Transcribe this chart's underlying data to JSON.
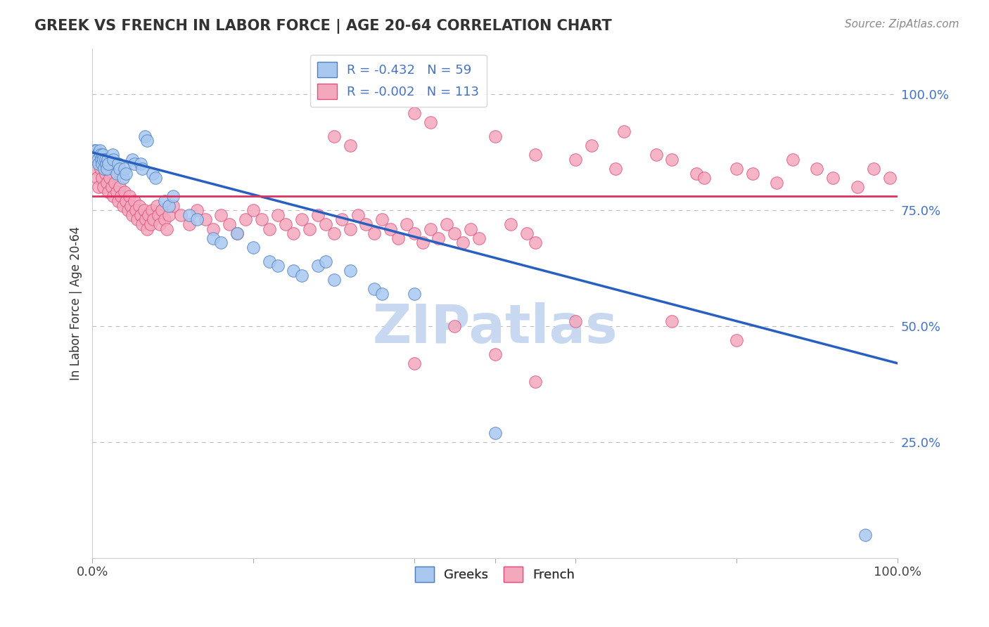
{
  "title": "GREEK VS FRENCH IN LABOR FORCE | AGE 20-64 CORRELATION CHART",
  "source": "Source: ZipAtlas.com",
  "ylabel": "In Labor Force | Age 20-64",
  "xlim": [
    0.0,
    1.0
  ],
  "ylim": [
    0.0,
    1.1
  ],
  "yticks": [
    0.25,
    0.5,
    0.75,
    1.0
  ],
  "ytick_labels": [
    "25.0%",
    "50.0%",
    "75.0%",
    "100.0%"
  ],
  "greek_R": -0.432,
  "greek_N": 59,
  "french_R": -0.002,
  "french_N": 113,
  "greek_color": "#A8C8F0",
  "french_color": "#F4A8BC",
  "greek_edge_color": "#5080C0",
  "french_edge_color": "#E05080",
  "greek_line_color": "#2860C0",
  "french_line_color": "#E03060",
  "watermark": "ZIPatlas",
  "watermark_color": "#C8D8F0",
  "greek_line_x": [
    0.0,
    1.0
  ],
  "greek_line_y": [
    0.875,
    0.42
  ],
  "french_line_x": [
    0.0,
    1.0
  ],
  "french_line_y": [
    0.78,
    0.78
  ],
  "greek_dots": [
    [
      0.002,
      0.88
    ],
    [
      0.003,
      0.87
    ],
    [
      0.004,
      0.86
    ],
    [
      0.005,
      0.88
    ],
    [
      0.006,
      0.87
    ],
    [
      0.007,
      0.86
    ],
    [
      0.008,
      0.85
    ],
    [
      0.009,
      0.88
    ],
    [
      0.01,
      0.87
    ],
    [
      0.011,
      0.86
    ],
    [
      0.012,
      0.85
    ],
    [
      0.013,
      0.87
    ],
    [
      0.014,
      0.86
    ],
    [
      0.015,
      0.84
    ],
    [
      0.016,
      0.86
    ],
    [
      0.017,
      0.85
    ],
    [
      0.018,
      0.84
    ],
    [
      0.019,
      0.86
    ],
    [
      0.02,
      0.85
    ],
    [
      0.025,
      0.87
    ],
    [
      0.026,
      0.86
    ],
    [
      0.03,
      0.83
    ],
    [
      0.032,
      0.85
    ],
    [
      0.034,
      0.84
    ],
    [
      0.038,
      0.82
    ],
    [
      0.04,
      0.84
    ],
    [
      0.042,
      0.83
    ],
    [
      0.05,
      0.86
    ],
    [
      0.052,
      0.85
    ],
    [
      0.06,
      0.85
    ],
    [
      0.062,
      0.84
    ],
    [
      0.065,
      0.91
    ],
    [
      0.068,
      0.9
    ],
    [
      0.075,
      0.83
    ],
    [
      0.078,
      0.82
    ],
    [
      0.09,
      0.77
    ],
    [
      0.095,
      0.76
    ],
    [
      0.1,
      0.78
    ],
    [
      0.12,
      0.74
    ],
    [
      0.13,
      0.73
    ],
    [
      0.15,
      0.69
    ],
    [
      0.16,
      0.68
    ],
    [
      0.18,
      0.7
    ],
    [
      0.2,
      0.67
    ],
    [
      0.22,
      0.64
    ],
    [
      0.23,
      0.63
    ],
    [
      0.25,
      0.62
    ],
    [
      0.26,
      0.61
    ],
    [
      0.28,
      0.63
    ],
    [
      0.29,
      0.64
    ],
    [
      0.3,
      0.6
    ],
    [
      0.32,
      0.62
    ],
    [
      0.35,
      0.58
    ],
    [
      0.36,
      0.57
    ],
    [
      0.4,
      0.57
    ],
    [
      0.5,
      0.27
    ],
    [
      0.96,
      0.05
    ]
  ],
  "french_dots": [
    [
      0.002,
      0.86
    ],
    [
      0.004,
      0.84
    ],
    [
      0.006,
      0.82
    ],
    [
      0.008,
      0.8
    ],
    [
      0.01,
      0.84
    ],
    [
      0.012,
      0.82
    ],
    [
      0.014,
      0.8
    ],
    [
      0.016,
      0.83
    ],
    [
      0.018,
      0.81
    ],
    [
      0.02,
      0.79
    ],
    [
      0.022,
      0.82
    ],
    [
      0.024,
      0.8
    ],
    [
      0.026,
      0.78
    ],
    [
      0.028,
      0.81
    ],
    [
      0.03,
      0.79
    ],
    [
      0.032,
      0.77
    ],
    [
      0.034,
      0.8
    ],
    [
      0.036,
      0.78
    ],
    [
      0.038,
      0.76
    ],
    [
      0.04,
      0.79
    ],
    [
      0.042,
      0.77
    ],
    [
      0.044,
      0.75
    ],
    [
      0.046,
      0.78
    ],
    [
      0.048,
      0.76
    ],
    [
      0.05,
      0.74
    ],
    [
      0.052,
      0.77
    ],
    [
      0.054,
      0.75
    ],
    [
      0.056,
      0.73
    ],
    [
      0.058,
      0.76
    ],
    [
      0.06,
      0.74
    ],
    [
      0.062,
      0.72
    ],
    [
      0.064,
      0.75
    ],
    [
      0.066,
      0.73
    ],
    [
      0.068,
      0.71
    ],
    [
      0.07,
      0.74
    ],
    [
      0.072,
      0.72
    ],
    [
      0.074,
      0.75
    ],
    [
      0.076,
      0.73
    ],
    [
      0.08,
      0.76
    ],
    [
      0.082,
      0.74
    ],
    [
      0.084,
      0.72
    ],
    [
      0.086,
      0.75
    ],
    [
      0.09,
      0.73
    ],
    [
      0.092,
      0.71
    ],
    [
      0.095,
      0.74
    ],
    [
      0.1,
      0.76
    ],
    [
      0.11,
      0.74
    ],
    [
      0.12,
      0.72
    ],
    [
      0.13,
      0.75
    ],
    [
      0.14,
      0.73
    ],
    [
      0.15,
      0.71
    ],
    [
      0.16,
      0.74
    ],
    [
      0.17,
      0.72
    ],
    [
      0.18,
      0.7
    ],
    [
      0.19,
      0.73
    ],
    [
      0.2,
      0.75
    ],
    [
      0.21,
      0.73
    ],
    [
      0.22,
      0.71
    ],
    [
      0.23,
      0.74
    ],
    [
      0.24,
      0.72
    ],
    [
      0.25,
      0.7
    ],
    [
      0.26,
      0.73
    ],
    [
      0.27,
      0.71
    ],
    [
      0.28,
      0.74
    ],
    [
      0.29,
      0.72
    ],
    [
      0.3,
      0.7
    ],
    [
      0.31,
      0.73
    ],
    [
      0.32,
      0.71
    ],
    [
      0.33,
      0.74
    ],
    [
      0.34,
      0.72
    ],
    [
      0.35,
      0.7
    ],
    [
      0.36,
      0.73
    ],
    [
      0.37,
      0.71
    ],
    [
      0.38,
      0.69
    ],
    [
      0.39,
      0.72
    ],
    [
      0.4,
      0.7
    ],
    [
      0.41,
      0.68
    ],
    [
      0.42,
      0.71
    ],
    [
      0.43,
      0.69
    ],
    [
      0.44,
      0.72
    ],
    [
      0.45,
      0.7
    ],
    [
      0.46,
      0.68
    ],
    [
      0.47,
      0.71
    ],
    [
      0.48,
      0.69
    ],
    [
      0.5,
      0.44
    ],
    [
      0.52,
      0.72
    ],
    [
      0.54,
      0.7
    ],
    [
      0.55,
      0.68
    ],
    [
      0.3,
      0.91
    ],
    [
      0.32,
      0.89
    ],
    [
      0.4,
      0.96
    ],
    [
      0.42,
      0.94
    ],
    [
      0.5,
      0.91
    ],
    [
      0.55,
      0.87
    ],
    [
      0.6,
      0.86
    ],
    [
      0.62,
      0.89
    ],
    [
      0.65,
      0.84
    ],
    [
      0.66,
      0.92
    ],
    [
      0.7,
      0.87
    ],
    [
      0.72,
      0.86
    ],
    [
      0.75,
      0.83
    ],
    [
      0.76,
      0.82
    ],
    [
      0.8,
      0.84
    ],
    [
      0.82,
      0.83
    ],
    [
      0.85,
      0.81
    ],
    [
      0.87,
      0.86
    ],
    [
      0.9,
      0.84
    ],
    [
      0.92,
      0.82
    ],
    [
      0.95,
      0.8
    ],
    [
      0.97,
      0.84
    ],
    [
      0.99,
      0.82
    ],
    [
      0.45,
      0.5
    ],
    [
      0.6,
      0.51
    ],
    [
      0.72,
      0.51
    ],
    [
      0.8,
      0.47
    ],
    [
      0.4,
      0.42
    ],
    [
      0.55,
      0.38
    ]
  ]
}
